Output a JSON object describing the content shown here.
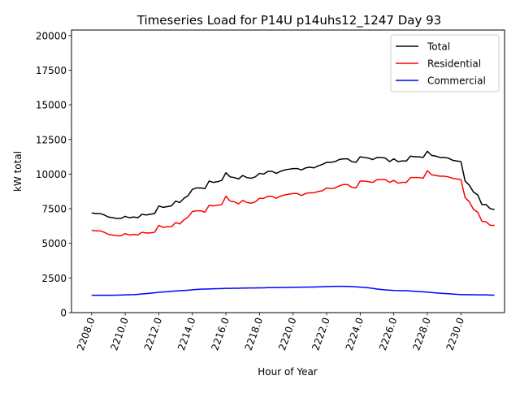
{
  "chart_data": {
    "type": "line",
    "title": "Timeseries Load for P14U p14uhs12_1247  Day 93",
    "xlabel": "Hour of Year",
    "ylabel": "kW total",
    "xlim": [
      2206.8,
      2232.6
    ],
    "ylim": [
      0,
      20400
    ],
    "x_ticks": [
      2208,
      2210,
      2212,
      2214,
      2216,
      2218,
      2220,
      2222,
      2224,
      2226,
      2228,
      2230
    ],
    "x_tick_labels": [
      "2208.0",
      "2210.0",
      "2212.0",
      "2214.0",
      "2216.0",
      "2218.0",
      "2220.0",
      "2222.0",
      "2224.0",
      "2226.0",
      "2228.0",
      "2230.0"
    ],
    "y_ticks": [
      0,
      2500,
      5000,
      7500,
      10000,
      12500,
      15000,
      17500,
      20000
    ],
    "y_tick_labels": [
      "0",
      "2500",
      "5000",
      "7500",
      "10000",
      "12500",
      "15000",
      "17500",
      "20000"
    ],
    "legend_position": "top-right",
    "x_start": 2208.0,
    "x_step": 0.25,
    "series": [
      {
        "name": "Total",
        "color": "#000000",
        "values": [
          7200,
          7150,
          7150,
          7050,
          6900,
          6850,
          6800,
          6800,
          6950,
          6850,
          6900,
          6850,
          7100,
          7050,
          7100,
          7150,
          7700,
          7600,
          7650,
          7700,
          8050,
          7950,
          8250,
          8450,
          8900,
          9000,
          9000,
          8950,
          9500,
          9400,
          9450,
          9550,
          10100,
          9800,
          9750,
          9650,
          9900,
          9750,
          9700,
          9800,
          10050,
          10000,
          10200,
          10200,
          10050,
          10200,
          10300,
          10350,
          10400,
          10400,
          10300,
          10450,
          10500,
          10450,
          10600,
          10700,
          10850,
          10850,
          10900,
          11050,
          11100,
          11100,
          10900,
          10850,
          11250,
          11200,
          11150,
          11050,
          11200,
          11200,
          11150,
          10900,
          11100,
          10900,
          10950,
          10950,
          11300,
          11250,
          11250,
          11200,
          11650,
          11350,
          11300,
          11200,
          11200,
          11150,
          11000,
          10950,
          10900,
          9500,
          9200,
          8700,
          8500,
          7800,
          7800,
          7500,
          7450
        ]
      },
      {
        "name": "Residential",
        "color": "#ff0000",
        "values": [
          5950,
          5900,
          5900,
          5800,
          5650,
          5600,
          5550,
          5550,
          5700,
          5600,
          5650,
          5600,
          5800,
          5750,
          5750,
          5800,
          6300,
          6150,
          6200,
          6200,
          6500,
          6400,
          6700,
          6900,
          7300,
          7350,
          7350,
          7250,
          7750,
          7700,
          7750,
          7800,
          8400,
          8050,
          8000,
          7850,
          8100,
          7950,
          7900,
          8000,
          8250,
          8250,
          8400,
          8400,
          8250,
          8400,
          8500,
          8550,
          8600,
          8600,
          8450,
          8600,
          8650,
          8650,
          8750,
          8800,
          9000,
          8950,
          9000,
          9150,
          9250,
          9250,
          9050,
          9000,
          9500,
          9500,
          9450,
          9400,
          9600,
          9600,
          9600,
          9400,
          9550,
          9350,
          9400,
          9400,
          9750,
          9750,
          9750,
          9700,
          10250,
          9950,
          9900,
          9850,
          9850,
          9800,
          9700,
          9650,
          9600,
          8300,
          8000,
          7450,
          7250,
          6600,
          6550,
          6300,
          6300
        ]
      },
      {
        "name": "Commercial",
        "color": "#0000ff",
        "values": [
          1250,
          1250,
          1250,
          1250,
          1250,
          1250,
          1260,
          1270,
          1280,
          1290,
          1300,
          1320,
          1350,
          1370,
          1400,
          1430,
          1470,
          1490,
          1510,
          1540,
          1560,
          1580,
          1600,
          1620,
          1650,
          1670,
          1690,
          1700,
          1710,
          1720,
          1730,
          1740,
          1750,
          1750,
          1760,
          1760,
          1770,
          1770,
          1780,
          1780,
          1790,
          1790,
          1800,
          1800,
          1810,
          1810,
          1820,
          1820,
          1830,
          1830,
          1840,
          1840,
          1850,
          1850,
          1860,
          1870,
          1880,
          1890,
          1900,
          1900,
          1900,
          1890,
          1880,
          1860,
          1840,
          1820,
          1790,
          1750,
          1700,
          1670,
          1640,
          1620,
          1600,
          1590,
          1580,
          1580,
          1560,
          1540,
          1520,
          1500,
          1480,
          1450,
          1420,
          1400,
          1380,
          1360,
          1340,
          1320,
          1300,
          1300,
          1290,
          1290,
          1280,
          1280,
          1280,
          1270,
          1260
        ]
      }
    ]
  }
}
